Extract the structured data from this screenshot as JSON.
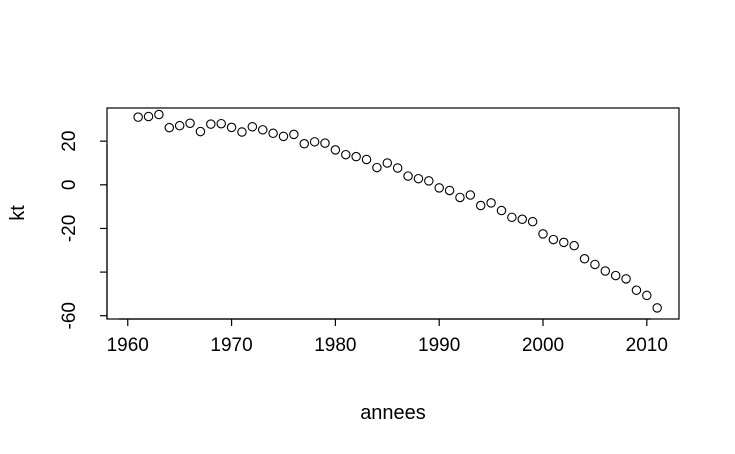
{
  "chart_data": {
    "type": "scatter",
    "title": "",
    "xlabel": "annees",
    "ylabel": "kt",
    "xlim": [
      1958,
      2013.1
    ],
    "ylim": [
      -61.5,
      35.2
    ],
    "xticks": [
      1960,
      1970,
      1980,
      1990,
      2000,
      2010
    ],
    "yticks": [
      -60,
      -40,
      -20,
      0,
      20
    ],
    "ytick_labels": [
      "-60",
      "",
      "-20",
      "0",
      "20"
    ],
    "grid": false,
    "legend": "none",
    "marker": "open-circle",
    "x": [
      1961,
      1962,
      1963,
      1964,
      1965,
      1966,
      1967,
      1968,
      1969,
      1970,
      1971,
      1972,
      1973,
      1974,
      1975,
      1976,
      1977,
      1978,
      1979,
      1980,
      1981,
      1982,
      1983,
      1984,
      1985,
      1986,
      1987,
      1988,
      1989,
      1990,
      1991,
      1992,
      1993,
      1994,
      1995,
      1996,
      1997,
      1998,
      1999,
      2000,
      2001,
      2002,
      2003,
      2004,
      2005,
      2006,
      2007,
      2008,
      2009,
      2010,
      2011
    ],
    "y": [
      31.0,
      31.3,
      32.2,
      26.2,
      27.1,
      28.2,
      24.4,
      27.8,
      28.0,
      26.3,
      24.2,
      26.6,
      25.2,
      23.6,
      22.2,
      23.1,
      18.8,
      19.7,
      19.1,
      16.0,
      13.8,
      12.9,
      11.6,
      7.9,
      10.0,
      7.7,
      4.0,
      2.8,
      1.8,
      -1.4,
      -2.6,
      -5.8,
      -4.7,
      -9.5,
      -8.3,
      -11.8,
      -14.9,
      -15.8,
      -16.9,
      -22.5,
      -25.1,
      -26.4,
      -27.9,
      -33.9,
      -36.5,
      -39.5,
      -41.6,
      -43.1,
      -48.3,
      -50.7,
      -56.4
    ]
  }
}
